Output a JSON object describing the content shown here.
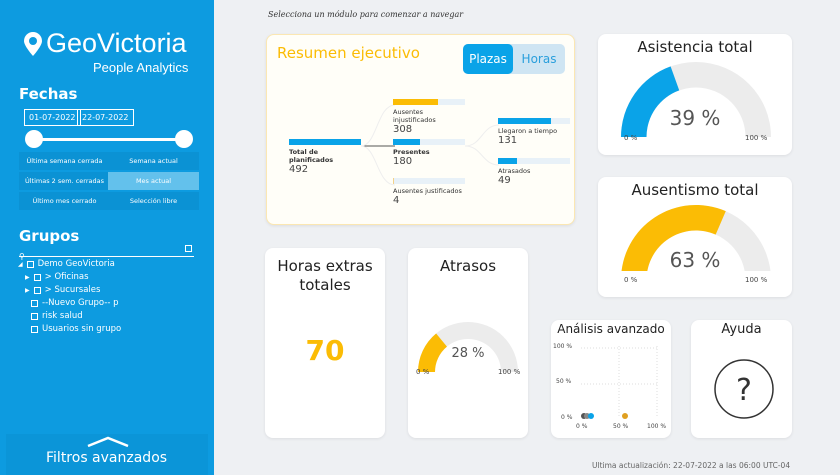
{
  "sidebar": {
    "brand": "GeoVictoria",
    "subtitle": "People Analytics",
    "fechas_title": "Fechas",
    "date_from": "01-07-2022",
    "date_to": "22-07-2022",
    "quick": [
      "Última semana cerrada",
      "Semana actual",
      "Últimas 2 sem. cerradas",
      "Mes actual",
      "Último mes cerrado",
      "Selección libre"
    ],
    "active_quick": "Mes actual",
    "grupos_title": "Grupos",
    "tree": [
      "Demo GeoVictoria",
      "> Oficinas",
      "> Sucursales",
      "--Nuevo Grupo-- p",
      "risk salud",
      "Usuarios sin grupo"
    ],
    "advanced": "Filtros avanzados"
  },
  "header": {
    "hint": "Selecciona un módulo para comenzar a navegar"
  },
  "resumen": {
    "title": "Resumen ejecutivo",
    "tabs": [
      "Plazas",
      "Horas"
    ],
    "active_tab": "Plazas",
    "nodes": [
      {
        "label": "Total de planificados",
        "value": "492",
        "fill": 1.0
      },
      {
        "label": "Ausentes injustificados",
        "value": "308",
        "fill": 0.63
      },
      {
        "label": "Presentes",
        "value": "180",
        "fill": 0.37
      },
      {
        "label": "Ausentes justificados",
        "value": "4",
        "fill": 0.01
      },
      {
        "label": "Llegaron a tiempo",
        "value": "131",
        "fill": 0.73
      },
      {
        "label": "Atrasados",
        "value": "49",
        "fill": 0.27
      }
    ]
  },
  "asistencia": {
    "title": "Asistencia total",
    "value": "39 %",
    "fraction": 0.39,
    "min": "0 %",
    "max": "100 %",
    "color": "#0aa3e8"
  },
  "ausentismo": {
    "title": "Ausentismo total",
    "value": "63 %",
    "fraction": 0.63,
    "min": "0 %",
    "max": "100 %",
    "color": "#fbbc05"
  },
  "horas": {
    "title": "Horas extras totales",
    "value": "70",
    "color": "#fbbc05"
  },
  "atrasos": {
    "title": "Atrasos",
    "value": "28 %",
    "fraction": 0.28,
    "min": "0 %",
    "max": "100 %",
    "color": "#fbbc05"
  },
  "analisis": {
    "title": "Análisis avanzado",
    "yticks": [
      "100 %",
      "50 %",
      "0 %"
    ],
    "xticks": [
      "0 %",
      "50 %",
      "100 %"
    ]
  },
  "ayuda": {
    "title": "Ayuda",
    "icon": "question-circle-icon"
  },
  "footer": {
    "updated": "Ultima actualización: 22-07-2022 a las 06:00 UTC-04"
  }
}
